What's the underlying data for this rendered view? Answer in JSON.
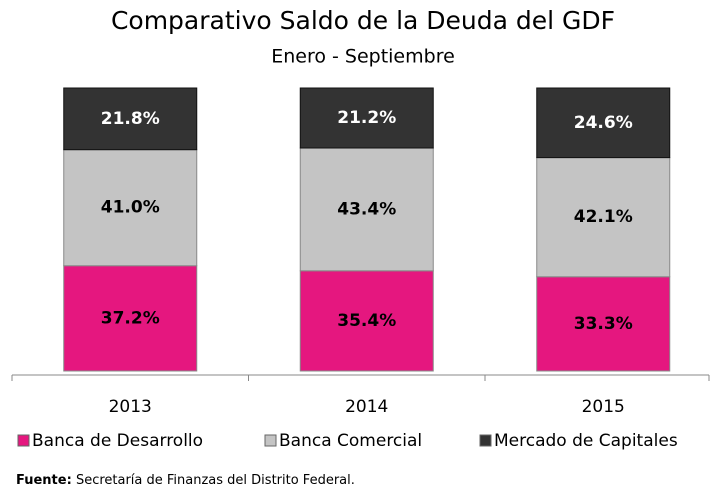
{
  "chart_data": {
    "type": "stacked_bar",
    "title": "Comparativo Saldo de la Deuda del GDF",
    "subtitle": "Enero - Septiembre",
    "categories": [
      "2013",
      "2014",
      "2015"
    ],
    "series": [
      {
        "name": "Banca de Desarrollo",
        "color": "#e5177f",
        "values": [
          37.2,
          35.4,
          33.3
        ],
        "value_labels": [
          "37.2%",
          "35.4%",
          "33.3%"
        ]
      },
      {
        "name": "Banca Comercial",
        "color": "#c4c4c4",
        "values": [
          41.0,
          43.4,
          42.1
        ],
        "value_labels": [
          "41.0%",
          "43.4%",
          "42.1%"
        ]
      },
      {
        "name": "Mercado de Capitales",
        "color": "#333333",
        "values": [
          21.8,
          21.2,
          24.6
        ],
        "value_labels": [
          "21.8%",
          "21.2%",
          "24.6%"
        ]
      }
    ],
    "ylim": [
      0,
      100
    ],
    "source": {
      "label": "Fuente:",
      "text": "Secretaría de Finanzas del Distrito Federal."
    }
  }
}
